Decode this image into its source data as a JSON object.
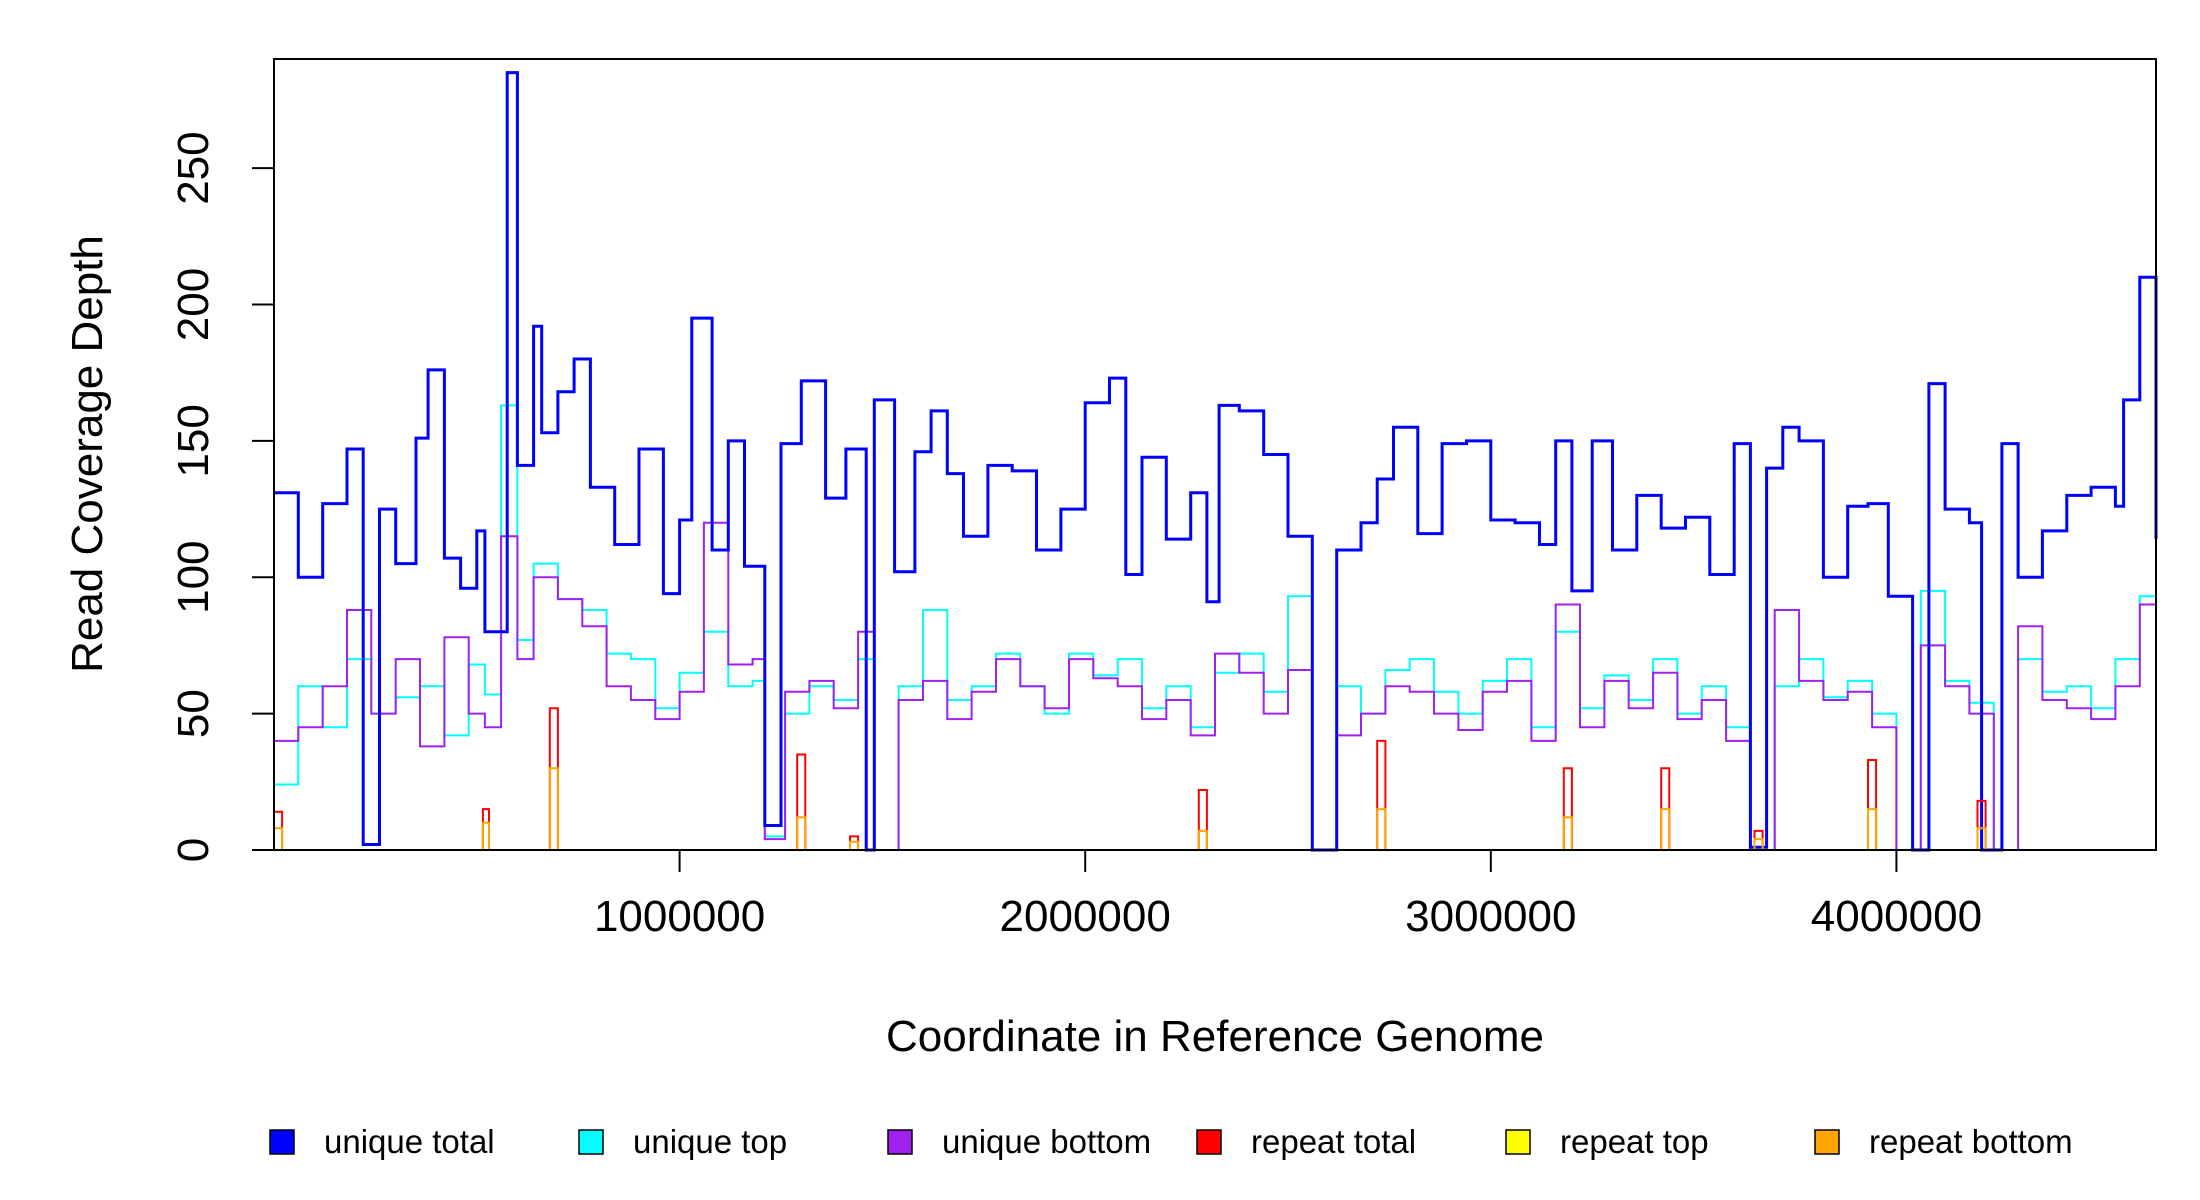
{
  "chart_data": {
    "type": "line",
    "title": "",
    "xlabel": "Coordinate in Reference Genome",
    "ylabel": "Read Coverage Depth",
    "xlim": [
      0,
      4640000
    ],
    "ylim": [
      0,
      290
    ],
    "x_ticks": [
      1000000,
      2000000,
      3000000,
      4000000
    ],
    "x_tick_labels": [
      "1000000",
      "2000000",
      "3000000",
      "4000000"
    ],
    "y_ticks": [
      0,
      50,
      100,
      150,
      200,
      250
    ],
    "y_tick_labels": [
      "0",
      "50",
      "100",
      "150",
      "200",
      "250"
    ],
    "grid": false,
    "legend_position": "bottom",
    "series": [
      {
        "name": "unique total",
        "color": "#0000ff",
        "x": [
          0,
          60000,
          120000,
          180000,
          220000,
          260000,
          300000,
          350000,
          380000,
          420000,
          460000,
          500000,
          520000,
          575000,
          600000,
          640000,
          660000,
          700000,
          740000,
          780000,
          840000,
          900000,
          960000,
          1000000,
          1030000,
          1080000,
          1120000,
          1160000,
          1210000,
          1250000,
          1300000,
          1360000,
          1410000,
          1460000,
          1480000,
          1530000,
          1580000,
          1620000,
          1660000,
          1700000,
          1760000,
          1820000,
          1880000,
          1940000,
          2000000,
          2060000,
          2100000,
          2140000,
          2200000,
          2260000,
          2300000,
          2330000,
          2380000,
          2440000,
          2500000,
          2560000,
          2620000,
          2680000,
          2720000,
          2760000,
          2820000,
          2880000,
          2940000,
          3000000,
          3060000,
          3120000,
          3160000,
          3200000,
          3250000,
          3300000,
          3360000,
          3420000,
          3480000,
          3540000,
          3600000,
          3640000,
          3680000,
          3720000,
          3760000,
          3820000,
          3880000,
          3930000,
          3980000,
          4040000,
          4080000,
          4120000,
          4180000,
          4210000,
          4260000,
          4300000,
          4360000,
          4420000,
          4480000,
          4540000,
          4560000,
          4600000,
          4640000
        ],
        "values": [
          131,
          100,
          127,
          147,
          2,
          125,
          105,
          151,
          176,
          107,
          96,
          117,
          80,
          285,
          141,
          192,
          153,
          168,
          180,
          133,
          112,
          147,
          94,
          121,
          195,
          110,
          150,
          104,
          9,
          149,
          172,
          129,
          147,
          0,
          165,
          102,
          146,
          161,
          138,
          115,
          141,
          139,
          110,
          125,
          164,
          173,
          101,
          144,
          114,
          131,
          91,
          163,
          161,
          145,
          115,
          0,
          110,
          120,
          136,
          155,
          116,
          149,
          150,
          121,
          120,
          112,
          150,
          95,
          150,
          110,
          130,
          118,
          122,
          101,
          149,
          1,
          140,
          155,
          150,
          100,
          126,
          127,
          93,
          0,
          171,
          125,
          120,
          0,
          149,
          100,
          117,
          130,
          133,
          126,
          165,
          210,
          114
        ]
      },
      {
        "name": "unique top",
        "color": "#00ffff",
        "x": [
          0,
          60000,
          120000,
          180000,
          240000,
          300000,
          360000,
          420000,
          480000,
          520000,
          560000,
          600000,
          640000,
          700000,
          760000,
          820000,
          880000,
          940000,
          1000000,
          1060000,
          1120000,
          1180000,
          1210000,
          1260000,
          1320000,
          1380000,
          1440000,
          1480000,
          1540000,
          1600000,
          1660000,
          1720000,
          1780000,
          1840000,
          1900000,
          1960000,
          2020000,
          2080000,
          2140000,
          2200000,
          2260000,
          2320000,
          2380000,
          2440000,
          2500000,
          2560000,
          2620000,
          2680000,
          2740000,
          2800000,
          2860000,
          2920000,
          2980000,
          3040000,
          3100000,
          3160000,
          3220000,
          3280000,
          3340000,
          3400000,
          3460000,
          3520000,
          3580000,
          3640000,
          3700000,
          3760000,
          3820000,
          3880000,
          3940000,
          4000000,
          4060000,
          4120000,
          4180000,
          4240000,
          4300000,
          4360000,
          4420000,
          4480000,
          4540000,
          4600000,
          4640000
        ],
        "values": [
          24,
          60,
          45,
          70,
          50,
          56,
          60,
          42,
          68,
          57,
          163,
          77,
          105,
          92,
          88,
          72,
          70,
          52,
          65,
          80,
          60,
          62,
          5,
          50,
          60,
          55,
          70,
          0,
          60,
          88,
          55,
          60,
          72,
          60,
          50,
          72,
          64,
          70,
          52,
          60,
          45,
          65,
          72,
          58,
          93,
          0,
          60,
          50,
          66,
          70,
          58,
          50,
          62,
          70,
          45,
          80,
          52,
          64,
          55,
          70,
          50,
          60,
          45,
          0,
          60,
          70,
          56,
          62,
          50,
          0,
          95,
          62,
          54,
          0,
          70,
          58,
          60,
          52,
          70,
          93,
          72
        ]
      },
      {
        "name": "unique bottom",
        "color": "#a020f0",
        "x": [
          0,
          60000,
          120000,
          180000,
          240000,
          300000,
          360000,
          420000,
          480000,
          520000,
          560000,
          600000,
          640000,
          700000,
          760000,
          820000,
          880000,
          940000,
          1000000,
          1060000,
          1120000,
          1180000,
          1210000,
          1260000,
          1320000,
          1380000,
          1440000,
          1480000,
          1540000,
          1600000,
          1660000,
          1720000,
          1780000,
          1840000,
          1900000,
          1960000,
          2020000,
          2080000,
          2140000,
          2200000,
          2260000,
          2320000,
          2380000,
          2440000,
          2500000,
          2560000,
          2620000,
          2680000,
          2740000,
          2800000,
          2860000,
          2920000,
          2980000,
          3040000,
          3100000,
          3160000,
          3220000,
          3280000,
          3340000,
          3400000,
          3460000,
          3520000,
          3580000,
          3640000,
          3700000,
          3760000,
          3820000,
          3880000,
          3940000,
          4000000,
          4060000,
          4120000,
          4180000,
          4240000,
          4300000,
          4360000,
          4420000,
          4480000,
          4540000,
          4600000,
          4640000
        ],
        "values": [
          40,
          45,
          60,
          88,
          50,
          70,
          38,
          78,
          50,
          45,
          115,
          70,
          100,
          92,
          82,
          60,
          55,
          48,
          58,
          120,
          68,
          70,
          4,
          58,
          62,
          52,
          80,
          0,
          55,
          62,
          48,
          58,
          70,
          60,
          52,
          70,
          63,
          60,
          48,
          55,
          42,
          72,
          65,
          50,
          66,
          0,
          42,
          50,
          60,
          58,
          50,
          44,
          58,
          62,
          40,
          90,
          45,
          62,
          52,
          65,
          48,
          55,
          40,
          0,
          88,
          62,
          55,
          58,
          45,
          0,
          75,
          60,
          50,
          0,
          82,
          55,
          52,
          48,
          60,
          90,
          30
        ]
      },
      {
        "name": "repeat total",
        "color": "#ff0000",
        "x": [
          0,
          10000,
          20000,
          515000,
          530000,
          680000,
          700000,
          1290000,
          1310000,
          1420000,
          1440000,
          2280000,
          2300000,
          2720000,
          2740000,
          3180000,
          3200000,
          3420000,
          3440000,
          3650000,
          3670000,
          3930000,
          3950000,
          4200000,
          4220000,
          4640000
        ],
        "values": [
          14,
          14,
          0,
          15,
          0,
          52,
          0,
          35,
          0,
          5,
          0,
          22,
          0,
          40,
          0,
          30,
          0,
          30,
          0,
          7,
          0,
          33,
          0,
          18,
          0,
          0
        ]
      },
      {
        "name": "repeat top",
        "color": "#ffff00",
        "x": [
          0,
          4640000
        ],
        "values": [
          0,
          0
        ]
      },
      {
        "name": "repeat bottom",
        "color": "#ffa500",
        "x": [
          0,
          10000,
          20000,
          515000,
          530000,
          680000,
          700000,
          1290000,
          1310000,
          1420000,
          1440000,
          2280000,
          2300000,
          2720000,
          2740000,
          3180000,
          3200000,
          3420000,
          3440000,
          3650000,
          3670000,
          3930000,
          3950000,
          4200000,
          4220000,
          4640000
        ],
        "values": [
          8,
          8,
          0,
          10,
          0,
          30,
          0,
          12,
          0,
          3,
          0,
          7,
          0,
          15,
          0,
          12,
          0,
          15,
          0,
          4,
          0,
          15,
          0,
          8,
          0,
          0
        ]
      }
    ]
  }
}
